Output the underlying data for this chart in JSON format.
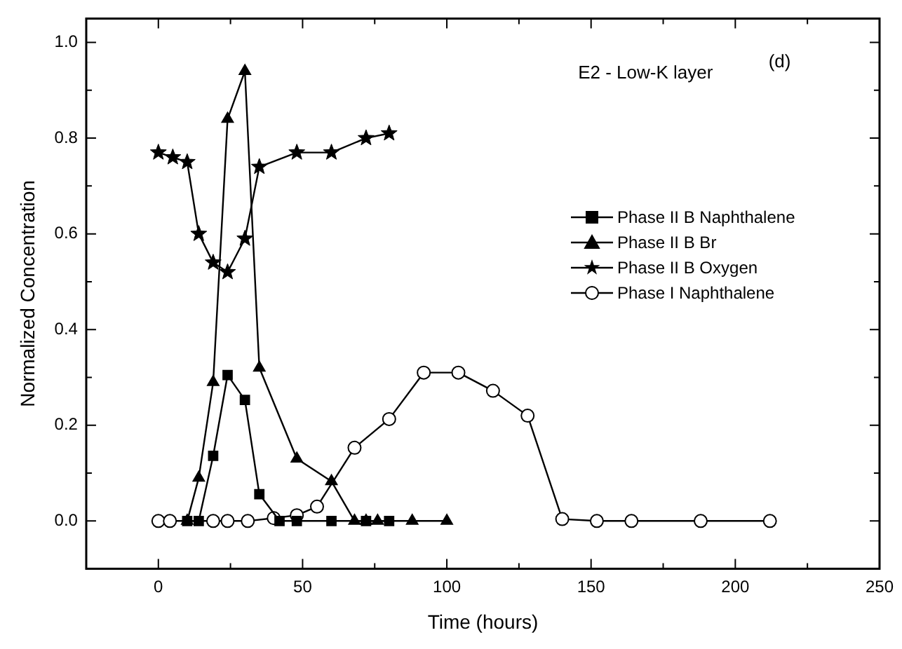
{
  "chart_data": {
    "type": "line",
    "xlabel": "Time (hours)",
    "ylabel": "Normalized Concentration",
    "annotations": [
      "E2 - Low-K layer",
      "(d)"
    ],
    "xlim": [
      -25,
      250
    ],
    "xticks": [
      0,
      50,
      100,
      150,
      200,
      250
    ],
    "ylim": [
      -0.1,
      1.05
    ],
    "yticks": [
      {
        "value": 0,
        "label": "0.0"
      },
      {
        "value": 0.2,
        "label": "0.2"
      },
      {
        "value": 0.4,
        "label": "0.4"
      },
      {
        "value": 0.6,
        "label": "0.6"
      },
      {
        "value": 0.8,
        "label": "0.8"
      },
      {
        "value": 1,
        "label": "1.0"
      }
    ],
    "legend": "right",
    "grid": false,
    "series": [
      {
        "name": "Phase II B Naphthalene",
        "color": "#000000",
        "marker": "square",
        "x": [
          10,
          14,
          19,
          24,
          30,
          35,
          42,
          48,
          60,
          72,
          80
        ],
        "values": [
          0,
          0,
          0.136,
          0.305,
          0.253,
          0.056,
          0,
          0,
          0,
          0,
          0
        ]
      },
      {
        "name": "Phase II B Br",
        "color": "#000000",
        "marker": "triangle",
        "x": [
          10,
          14,
          19,
          24,
          30,
          35,
          48,
          60,
          68,
          72,
          76,
          88,
          100
        ],
        "values": [
          0,
          0.09,
          0.29,
          0.84,
          0.94,
          0.32,
          0.13,
          0.083,
          0,
          0,
          0,
          0,
          0
        ]
      },
      {
        "name": "Phase II B Oxygen",
        "color": "#000000",
        "marker": "star",
        "x": [
          0,
          5,
          10,
          14,
          19,
          24,
          30,
          35,
          48,
          60,
          72,
          80
        ],
        "values": [
          0.77,
          0.76,
          0.75,
          0.6,
          0.54,
          0.52,
          0.59,
          0.74,
          0.77,
          0.77,
          0.8,
          0.81
        ]
      },
      {
        "name": "Phase I Naphthalene",
        "color": "#000000",
        "marker": "circle",
        "x": [
          0,
          4,
          19,
          24,
          31,
          40,
          48,
          55,
          68,
          80,
          92,
          104,
          116,
          128,
          140,
          152,
          164,
          188,
          212
        ],
        "values": [
          0,
          0,
          0,
          0,
          0,
          0.006,
          0.012,
          0.03,
          0.153,
          0.213,
          0.31,
          0.31,
          0.272,
          0.22,
          0.004,
          0,
          0,
          0,
          0
        ]
      }
    ]
  }
}
